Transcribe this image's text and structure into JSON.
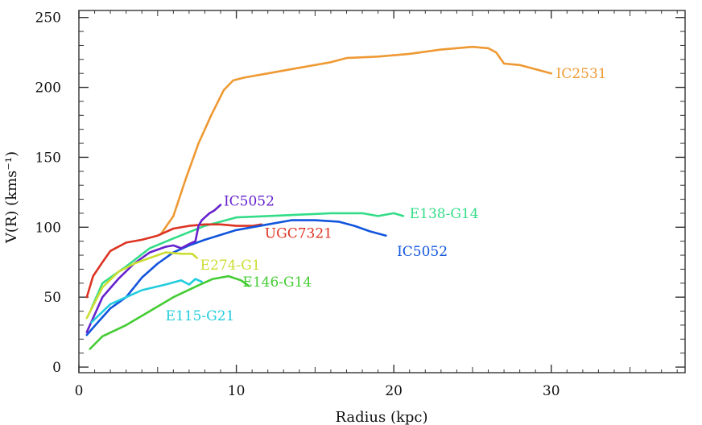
{
  "chart_data": {
    "type": "line",
    "title": "",
    "xlabel": "Radius (kpc)",
    "ylabel": "V(R) (kms⁻¹)",
    "xlim": [
      0,
      38.5
    ],
    "ylim": [
      -4,
      255
    ],
    "x_ticks": [
      0,
      10,
      20,
      30
    ],
    "y_ticks": [
      0,
      50,
      100,
      150,
      200,
      250
    ],
    "x_tick_labels": [
      "0",
      "10",
      "20",
      "30"
    ],
    "y_tick_labels": [
      "0",
      "50",
      "100",
      "150",
      "200",
      "250"
    ],
    "grid": false,
    "legend": "none",
    "series": [
      {
        "name": "IC2531",
        "color": "#ee9933",
        "label_at": [
          30.3,
          210
        ],
        "points": [
          [
            5.2,
            95
          ],
          [
            6,
            108
          ],
          [
            6.8,
            135
          ],
          [
            7.6,
            160
          ],
          [
            8.4,
            180
          ],
          [
            9.2,
            198
          ],
          [
            9.8,
            205
          ],
          [
            10.5,
            207
          ],
          [
            12,
            210
          ],
          [
            14,
            214
          ],
          [
            16,
            218
          ],
          [
            17,
            221
          ],
          [
            19,
            222
          ],
          [
            21,
            224
          ],
          [
            23,
            227
          ],
          [
            25,
            229
          ],
          [
            26,
            228
          ],
          [
            26.5,
            225
          ],
          [
            27,
            217
          ],
          [
            28,
            216
          ],
          [
            29,
            213
          ],
          [
            30,
            210
          ]
        ]
      },
      {
        "name": "E138-G14",
        "color": "#33dd88",
        "label_at": [
          21,
          110
        ],
        "points": [
          [
            0.8,
            42
          ],
          [
            1.5,
            60
          ],
          [
            3,
            72
          ],
          [
            4.5,
            85
          ],
          [
            6,
            92
          ],
          [
            8,
            101
          ],
          [
            10,
            107
          ],
          [
            12,
            108
          ],
          [
            14,
            109
          ],
          [
            16,
            110
          ],
          [
            17,
            110
          ],
          [
            18,
            110
          ],
          [
            19,
            108
          ],
          [
            20,
            110
          ],
          [
            20.6,
            108
          ]
        ]
      },
      {
        "name": "UGC7321",
        "color": "#dd3322",
        "label_at": [
          11.8,
          96
        ],
        "points": [
          [
            0.5,
            50
          ],
          [
            0.9,
            65
          ],
          [
            1.5,
            75
          ],
          [
            2,
            83
          ],
          [
            3,
            89
          ],
          [
            4,
            91
          ],
          [
            5,
            94
          ],
          [
            6,
            99
          ],
          [
            7,
            101
          ],
          [
            8,
            102
          ],
          [
            9,
            102
          ],
          [
            10,
            101
          ],
          [
            11,
            101
          ],
          [
            11.6,
            102
          ]
        ]
      },
      {
        "name": "IC5052",
        "color": "#1155dd",
        "label_at": [
          20.2,
          83
        ],
        "points": [
          [
            0.5,
            23
          ],
          [
            1.2,
            32
          ],
          [
            2,
            42
          ],
          [
            3,
            50
          ],
          [
            4,
            64
          ],
          [
            5,
            74
          ],
          [
            6,
            82
          ],
          [
            7,
            87
          ],
          [
            8,
            91
          ],
          [
            10,
            98
          ],
          [
            12,
            102
          ],
          [
            13.5,
            105
          ],
          [
            15,
            105
          ],
          [
            16.5,
            104
          ],
          [
            17.5,
            101
          ],
          [
            18.5,
            97
          ],
          [
            19.5,
            94
          ]
        ]
      },
      {
        "name": "IC5052",
        "color": "#6622cc",
        "label_at": [
          9.2,
          119
        ],
        "points": [
          [
            0.5,
            25
          ],
          [
            1.5,
            50
          ],
          [
            2.5,
            63
          ],
          [
            3.5,
            74
          ],
          [
            4.5,
            82
          ],
          [
            5.5,
            86
          ],
          [
            6,
            87
          ],
          [
            6.5,
            85
          ],
          [
            7,
            88
          ],
          [
            7.4,
            90
          ],
          [
            7.6,
            101
          ],
          [
            7.8,
            105
          ],
          [
            8.3,
            110
          ],
          [
            8.6,
            112
          ],
          [
            9,
            116
          ]
        ]
      },
      {
        "name": "E274-G1",
        "color": "#ccdd33",
        "label_at": [
          7.7,
          73
        ],
        "points": [
          [
            0.5,
            35
          ],
          [
            1.5,
            57
          ],
          [
            2.5,
            68
          ],
          [
            3.5,
            74
          ],
          [
            4.5,
            78
          ],
          [
            5.5,
            82
          ],
          [
            6.5,
            81
          ],
          [
            7.2,
            81
          ],
          [
            7.5,
            78
          ]
        ]
      },
      {
        "name": "E146-G14",
        "color": "#44cc33",
        "label_at": [
          10.4,
          61
        ],
        "points": [
          [
            0.7,
            13
          ],
          [
            1.5,
            22
          ],
          [
            3,
            30
          ],
          [
            4.5,
            40
          ],
          [
            6,
            50
          ],
          [
            7.5,
            58
          ],
          [
            8.5,
            63
          ],
          [
            9.5,
            65
          ],
          [
            10.3,
            62
          ],
          [
            10.8,
            58
          ]
        ]
      },
      {
        "name": "E115-G21",
        "color": "#22ccdd",
        "label_at": [
          5.5,
          37
        ],
        "points": [
          [
            0.8,
            32
          ],
          [
            2,
            45
          ],
          [
            3,
            50
          ],
          [
            4,
            55
          ],
          [
            5.5,
            59
          ],
          [
            6.5,
            62
          ],
          [
            7,
            59
          ],
          [
            7.4,
            63
          ],
          [
            7.8,
            61
          ]
        ]
      }
    ]
  }
}
